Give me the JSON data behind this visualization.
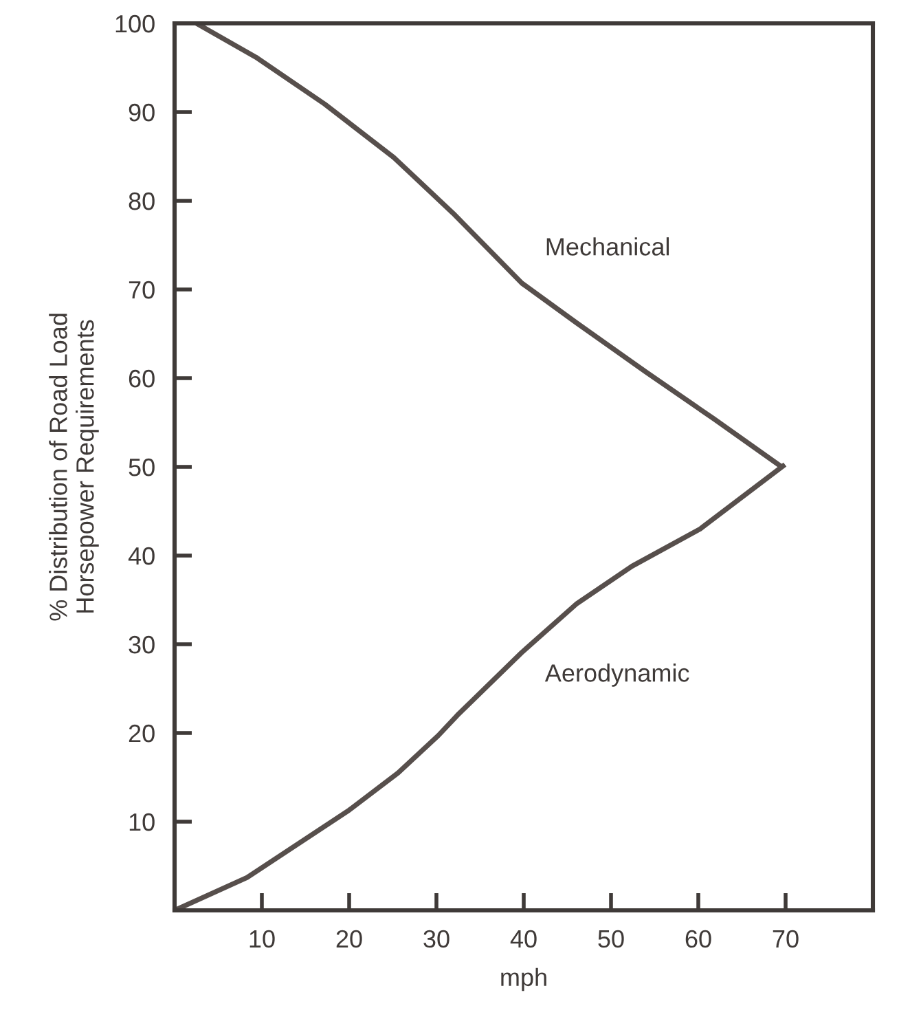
{
  "chart_data": {
    "type": "line",
    "xlabel": "mph",
    "ylabel": "% Distribution of Road Load\nHorsepower Requirements",
    "xlim": [
      0,
      80
    ],
    "ylim": [
      0,
      100
    ],
    "xticks": [
      10,
      20,
      30,
      40,
      50,
      60,
      70
    ],
    "yticks": [
      10,
      20,
      30,
      40,
      50,
      60,
      70,
      80,
      90,
      100
    ],
    "grid": false,
    "legend": false,
    "marker": "none",
    "line_style": "solid",
    "series": [
      {
        "name": "Mechanical",
        "color": "#574f4c",
        "x": [
          2.5,
          9.3,
          17.2,
          25.1,
          31.9,
          39.8,
          46.1,
          54,
          61.8,
          69.4
        ],
        "values": [
          100,
          96.2,
          90.9,
          84.9,
          78.6,
          70.7,
          66.2,
          60.7,
          55.4,
          50.1
        ]
      },
      {
        "name": "Aerodynamic",
        "color": "#574f4c",
        "x": [
          0,
          8.3,
          20,
          25.6,
          30.2,
          32.4,
          39.8,
          46.1,
          52.4,
          60.2,
          69.7
        ],
        "values": [
          0,
          3.7,
          11.3,
          15.5,
          19.7,
          22,
          29.1,
          34.6,
          38.8,
          43,
          50.1
        ]
      }
    ]
  }
}
